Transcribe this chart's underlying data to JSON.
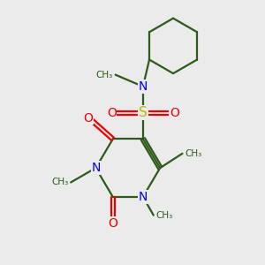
{
  "background_color": "#ebebeb",
  "bond_color": "#2d5a1b",
  "N_color": "#0000ee",
  "O_color": "#ee0000",
  "S_color": "#bbbb00",
  "figsize": [
    3.0,
    3.0
  ],
  "dpi": 100,
  "xlim": [
    0,
    10
  ],
  "ylim": [
    0,
    10
  ]
}
